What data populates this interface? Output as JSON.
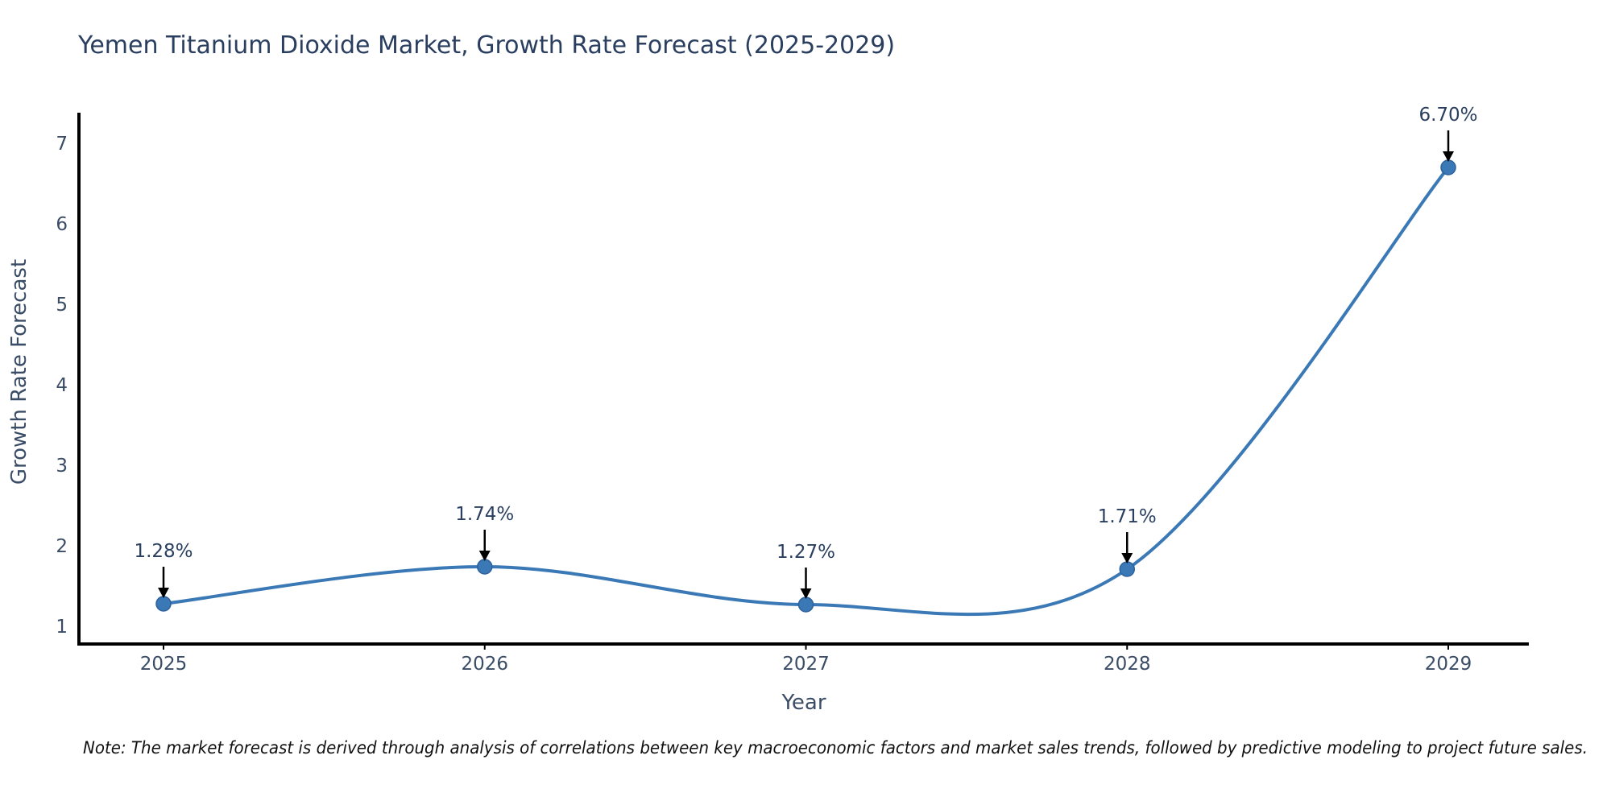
{
  "title": "Yemen Titanium Dioxide Market, Growth Rate Forecast (2025-2029)",
  "note": "Note: The market forecast is derived through analysis of correlations between key macroeconomic factors and market sales trends, followed by predictive modeling to project future sales.",
  "chart_data": {
    "type": "line",
    "line_shape": "spline",
    "title": "Yemen Titanium Dioxide Market, Growth Rate Forecast (2025-2029)",
    "xlabel": "Year",
    "ylabel": "Growth Rate Forecast",
    "categories": [
      "2025",
      "2026",
      "2027",
      "2028",
      "2029"
    ],
    "values": [
      1.28,
      1.74,
      1.27,
      1.71,
      6.7
    ],
    "point_labels": [
      "1.28%",
      "1.74%",
      "1.27%",
      "1.71%",
      "6.70%"
    ],
    "yticks": [
      1,
      2,
      3,
      4,
      5,
      6,
      7
    ],
    "ylim": [
      0.78,
      7.38
    ],
    "grid": false,
    "legend": "none",
    "annotation_style": "label-with-down-arrow",
    "colors": {
      "line": "#3a79b5",
      "marker": "#3a79b5",
      "marker_edge": "#2d619b",
      "axis": "#000000",
      "title_text": "#2a3f5f",
      "axis_title_text": "#3b4d66",
      "tick_text": "#3b4d66",
      "annotation_text": "#2a3f5f",
      "arrow": "#000000",
      "note_text": "#111111",
      "background": "#ffffff"
    }
  }
}
